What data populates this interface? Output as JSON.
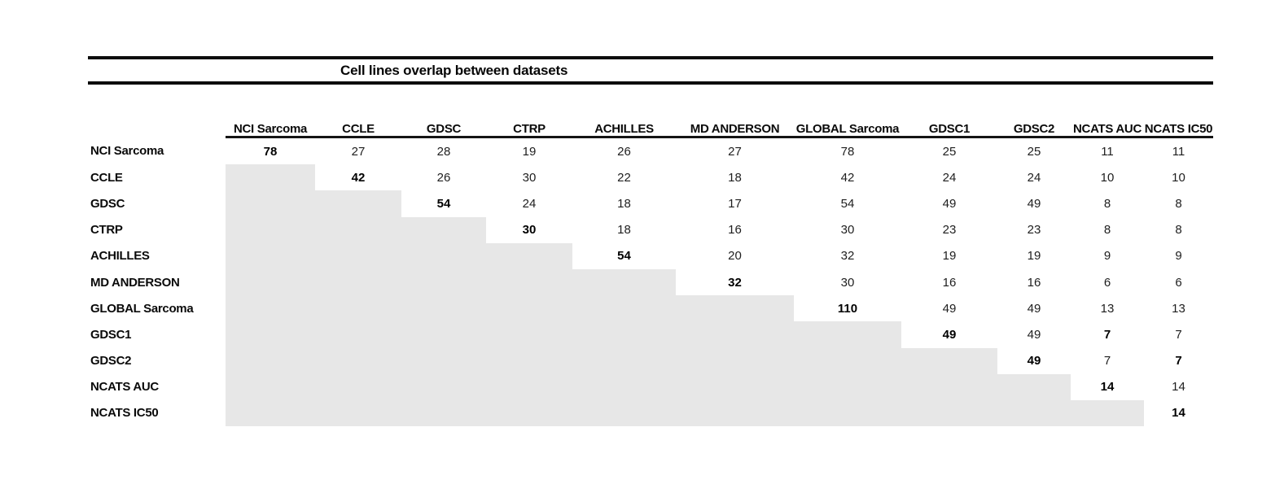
{
  "title": "Cell lines overlap between datasets",
  "matrix": {
    "columns": [
      "NCI Sarcoma",
      "CCLE",
      "GDSC",
      "CTRP",
      "ACHILLES",
      "MD ANDERSON",
      "GLOBAL Sarcoma",
      "GDSC1",
      "GDSC2",
      "NCATS AUC",
      "NCATS IC50"
    ],
    "rows": [
      {
        "label": "NCI Sarcoma",
        "values": [
          78,
          27,
          28,
          19,
          26,
          27,
          78,
          25,
          25,
          11,
          11
        ],
        "bold_cols": [
          0
        ]
      },
      {
        "label": "CCLE",
        "values": [
          null,
          42,
          26,
          30,
          22,
          18,
          42,
          24,
          24,
          10,
          10
        ],
        "bold_cols": [
          1
        ]
      },
      {
        "label": "GDSC",
        "values": [
          null,
          null,
          54,
          24,
          18,
          17,
          54,
          49,
          49,
          8,
          8
        ],
        "bold_cols": [
          2
        ]
      },
      {
        "label": "CTRP",
        "values": [
          null,
          null,
          null,
          30,
          18,
          16,
          30,
          23,
          23,
          8,
          8
        ],
        "bold_cols": [
          3
        ]
      },
      {
        "label": "ACHILLES",
        "values": [
          null,
          null,
          null,
          null,
          54,
          20,
          32,
          19,
          19,
          9,
          9
        ],
        "bold_cols": [
          4
        ]
      },
      {
        "label": "MD ANDERSON",
        "values": [
          null,
          null,
          null,
          null,
          null,
          32,
          30,
          16,
          16,
          6,
          6
        ],
        "bold_cols": [
          5
        ]
      },
      {
        "label": "GLOBAL Sarcoma",
        "values": [
          null,
          null,
          null,
          null,
          null,
          null,
          110,
          49,
          49,
          13,
          13
        ],
        "bold_cols": [
          6
        ]
      },
      {
        "label": "GDSC1",
        "values": [
          null,
          null,
          null,
          null,
          null,
          null,
          null,
          49,
          49,
          7,
          7
        ],
        "bold_cols": [
          7,
          9
        ]
      },
      {
        "label": "GDSC2",
        "values": [
          null,
          null,
          null,
          null,
          null,
          null,
          null,
          null,
          49,
          7,
          7
        ],
        "bold_cols": [
          8,
          10
        ]
      },
      {
        "label": "NCATS AUC",
        "values": [
          null,
          null,
          null,
          null,
          null,
          null,
          null,
          null,
          null,
          14,
          14
        ],
        "bold_cols": [
          9
        ]
      },
      {
        "label": "NCATS IC50",
        "values": [
          null,
          null,
          null,
          null,
          null,
          null,
          null,
          null,
          null,
          null,
          14
        ],
        "bold_cols": [
          10
        ]
      }
    ],
    "empty_cell_color": "#e7e7e7",
    "rule_color": "#0d0d0d"
  }
}
